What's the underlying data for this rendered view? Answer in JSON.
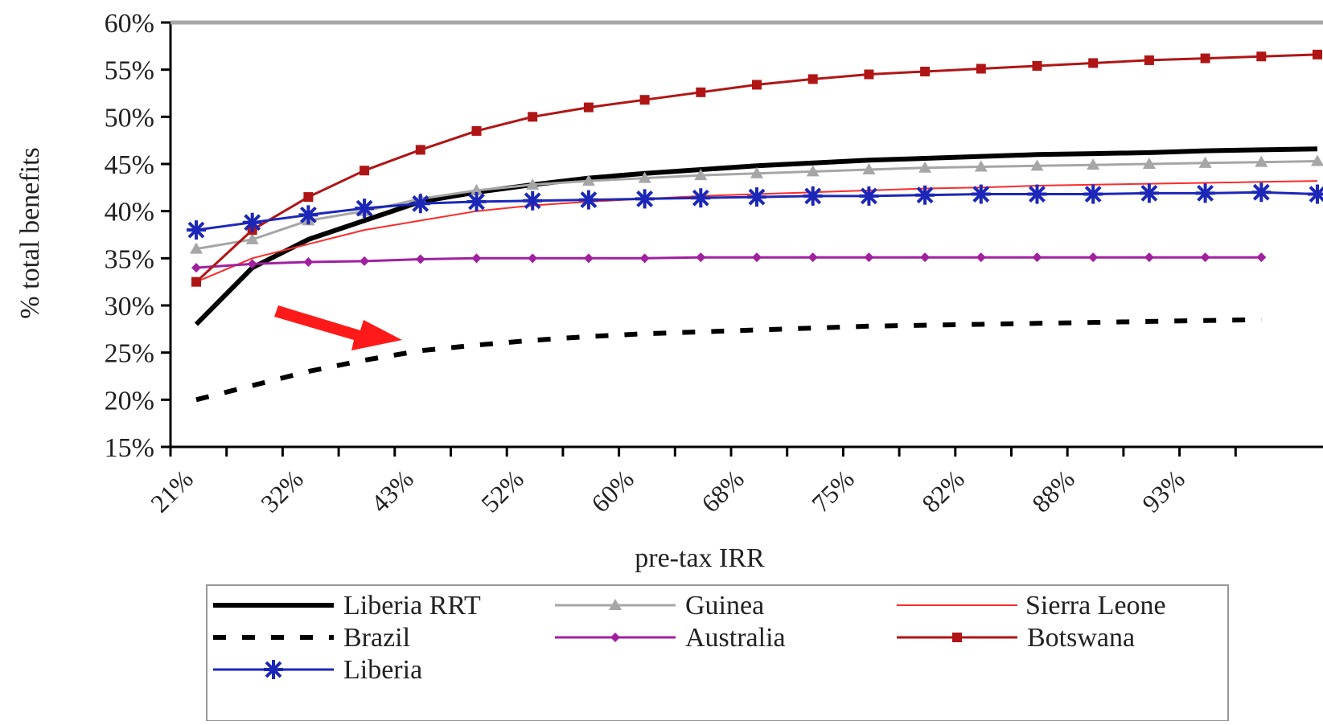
{
  "chart_data": {
    "type": "line",
    "xlabel": "pre-tax IRR",
    "ylabel": "% total benefits",
    "y_ticks": [
      "15%",
      "20%",
      "25%",
      "30%",
      "35%",
      "40%",
      "45%",
      "50%",
      "55%",
      "60%"
    ],
    "ylim": [
      15,
      60
    ],
    "x_tick_labels": [
      "21%",
      "32%",
      "43%",
      "52%",
      "60%",
      "68%",
      "75%",
      "82%",
      "88%",
      "93%"
    ],
    "grid": false,
    "legend_position": "bottom",
    "series": [
      {
        "name": "Liberia RRT",
        "color": "#000000",
        "style": "solid-thick",
        "marker": "none",
        "values": [
          28,
          34,
          37,
          39,
          41,
          42,
          42.8,
          43.5,
          44,
          44.4,
          44.8,
          45.1,
          45.4,
          45.6,
          45.8,
          46,
          46.1,
          46.2,
          46.4,
          46.5,
          46.6
        ]
      },
      {
        "name": "Guinea",
        "color": "#a6a6a6",
        "style": "solid",
        "marker": "triangle",
        "values": [
          36,
          37,
          39,
          40,
          41.3,
          42.2,
          42.8,
          43.2,
          43.5,
          43.8,
          44,
          44.2,
          44.4,
          44.6,
          44.7,
          44.8,
          44.9,
          45,
          45.1,
          45.2,
          45.3
        ]
      },
      {
        "name": "Sierra Leone",
        "color": "#ff2a2a",
        "style": "solid-thin",
        "marker": "none",
        "values": [
          32.5,
          35,
          36.5,
          38,
          39,
          40,
          40.6,
          41,
          41.3,
          41.6,
          41.8,
          42,
          42.2,
          42.4,
          42.5,
          42.7,
          42.8,
          42.9,
          43,
          43.1,
          43.2
        ]
      },
      {
        "name": "Brazil",
        "color": "#000000",
        "style": "dashed",
        "marker": "none",
        "values": [
          20,
          21.5,
          23,
          24.2,
          25.2,
          25.8,
          26.3,
          26.7,
          27,
          27.2,
          27.4,
          27.6,
          27.8,
          27.9,
          28,
          28.1,
          28.2,
          28.3,
          28.4,
          28.5
        ]
      },
      {
        "name": "Australia",
        "color": "#a020a0",
        "style": "solid",
        "marker": "diamond",
        "values": [
          34,
          34.4,
          34.6,
          34.7,
          34.9,
          35,
          35,
          35,
          35,
          35.1,
          35.1,
          35.1,
          35.1,
          35.1,
          35.1,
          35.1,
          35.1,
          35.1,
          35.1,
          35.1
        ]
      },
      {
        "name": "Botswana",
        "color": "#b01515",
        "style": "solid",
        "marker": "square",
        "values": [
          32.5,
          38,
          41.5,
          44.3,
          46.5,
          48.5,
          50,
          51,
          51.8,
          52.6,
          53.4,
          54,
          54.5,
          54.8,
          55.1,
          55.4,
          55.7,
          56,
          56.2,
          56.4,
          56.6
        ]
      },
      {
        "name": "Liberia",
        "color": "#1c27b8",
        "style": "solid",
        "marker": "asterisk",
        "values": [
          38,
          38.8,
          39.6,
          40.3,
          40.8,
          41,
          41.1,
          41.2,
          41.3,
          41.4,
          41.5,
          41.6,
          41.6,
          41.7,
          41.8,
          41.8,
          41.8,
          41.9,
          41.9,
          42,
          41.8
        ]
      }
    ]
  }
}
